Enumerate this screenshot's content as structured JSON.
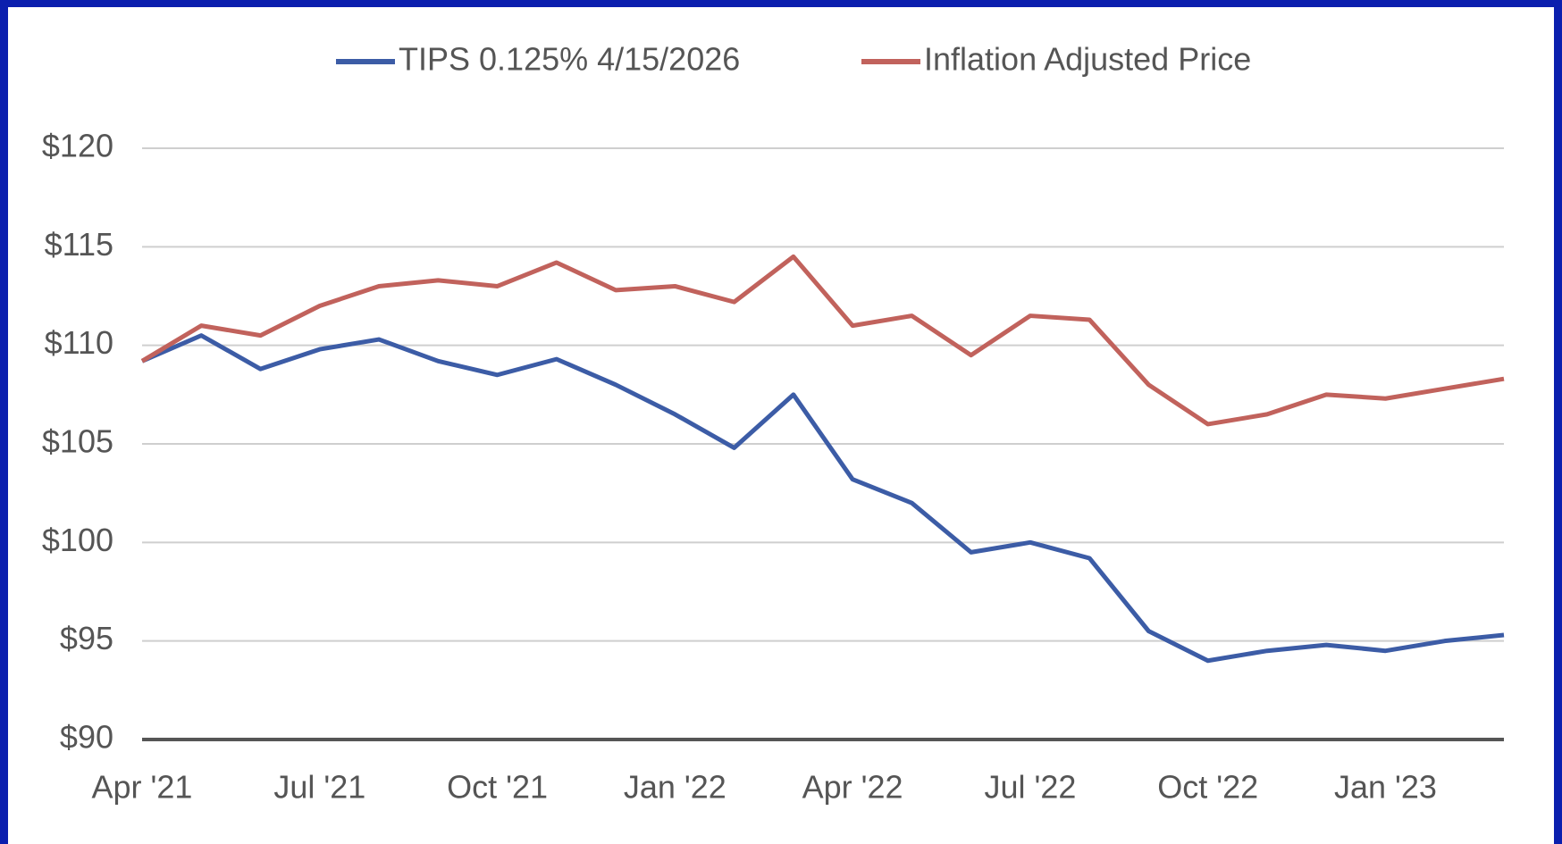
{
  "chart_data": {
    "type": "line",
    "x": [
      "2021-04",
      "2021-05",
      "2021-06",
      "2021-07",
      "2021-08",
      "2021-09",
      "2021-10",
      "2021-11",
      "2021-12",
      "2022-01",
      "2022-02",
      "2022-03",
      "2022-04",
      "2022-05",
      "2022-06",
      "2022-07",
      "2022-08",
      "2022-09",
      "2022-10",
      "2022-11",
      "2022-12",
      "2023-01",
      "2023-02",
      "2023-03"
    ],
    "series": [
      {
        "name": "TIPS 0.125% 4/15/2026",
        "color": "#3c5ca6",
        "values": [
          109.2,
          110.5,
          108.8,
          109.8,
          110.3,
          109.2,
          108.5,
          109.3,
          108.0,
          106.5,
          104.8,
          107.5,
          103.2,
          102.0,
          99.5,
          100.0,
          99.2,
          95.5,
          94.0,
          94.5,
          94.8,
          94.5,
          95.0,
          95.3
        ]
      },
      {
        "name": "Inflation Adjusted Price",
        "color": "#c1625c",
        "values": [
          109.2,
          111.0,
          110.5,
          112.0,
          113.0,
          113.3,
          113.0,
          114.2,
          112.8,
          113.0,
          112.2,
          114.5,
          111.0,
          111.5,
          109.5,
          111.5,
          111.3,
          108.0,
          106.0,
          106.5,
          107.5,
          107.3,
          107.8,
          108.3
        ]
      }
    ],
    "xlim": [
      "2021-04",
      "2023-03"
    ],
    "xticks": [
      {
        "value": "2021-04",
        "label": "Apr '21"
      },
      {
        "value": "2021-07",
        "label": "Jul '21"
      },
      {
        "value": "2021-10",
        "label": "Oct '21"
      },
      {
        "value": "2022-01",
        "label": "Jan '22"
      },
      {
        "value": "2022-04",
        "label": "Apr '22"
      },
      {
        "value": "2022-07",
        "label": "Jul '22"
      },
      {
        "value": "2022-10",
        "label": "Oct '22"
      },
      {
        "value": "2023-01",
        "label": "Jan '23"
      }
    ],
    "ylim": [
      90,
      120
    ],
    "yticks": [
      {
        "value": 90,
        "label": "$90"
      },
      {
        "value": 95,
        "label": "$95"
      },
      {
        "value": 100,
        "label": "$100"
      },
      {
        "value": 105,
        "label": "$105"
      },
      {
        "value": 110,
        "label": "$110"
      },
      {
        "value": 115,
        "label": "$115"
      },
      {
        "value": 120,
        "label": "$120"
      }
    ],
    "grid": true,
    "legend": "top"
  }
}
